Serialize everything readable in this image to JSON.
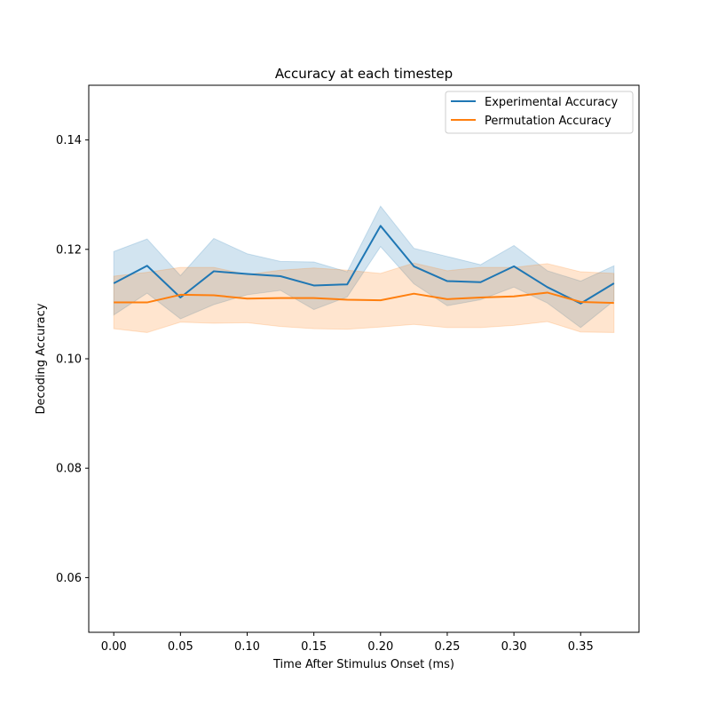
{
  "chart_data": {
    "type": "line",
    "title": "Accuracy at each timestep",
    "xlabel": "Time After Stimulus Onset (ms)",
    "ylabel": "Decoding Accuracy",
    "xlim": [
      -0.01875,
      0.39375
    ],
    "ylim": [
      0.05,
      0.15
    ],
    "xticks": [
      0.0,
      0.05,
      0.1,
      0.15,
      0.2,
      0.25,
      0.3,
      0.35
    ],
    "xtick_labels": [
      "0.00",
      "0.05",
      "0.10",
      "0.15",
      "0.20",
      "0.25",
      "0.30",
      "0.35"
    ],
    "yticks": [
      0.06,
      0.08,
      0.1,
      0.12,
      0.14
    ],
    "ytick_labels": [
      "0.06",
      "0.08",
      "0.10",
      "0.12",
      "0.14"
    ],
    "grid": false,
    "legend_position": "top-right",
    "x": [
      0.0,
      0.025,
      0.05,
      0.075,
      0.1,
      0.125,
      0.15,
      0.175,
      0.2,
      0.225,
      0.25,
      0.275,
      0.3,
      0.325,
      0.35,
      0.375
    ],
    "series": [
      {
        "name": "Experimental Accuracy",
        "color": "#1f77b4",
        "values": [
          0.1138,
          0.117,
          0.1112,
          0.116,
          0.1155,
          0.1151,
          0.1134,
          0.1136,
          0.1243,
          0.1169,
          0.1142,
          0.114,
          0.1169,
          0.1131,
          0.1101,
          0.1138
        ],
        "lower": [
          0.108,
          0.112,
          0.1073,
          0.1099,
          0.1117,
          0.1125,
          0.109,
          0.1113,
          0.1205,
          0.1137,
          0.1097,
          0.1108,
          0.1131,
          0.1102,
          0.1057,
          0.1106
        ],
        "upper": [
          0.1196,
          0.1219,
          0.1152,
          0.122,
          0.1192,
          0.1178,
          0.1177,
          0.1159,
          0.1279,
          0.1202,
          0.1187,
          0.1172,
          0.1207,
          0.1161,
          0.1142,
          0.117
        ]
      },
      {
        "name": "Permutation Accuracy",
        "color": "#ff7f0e",
        "values": [
          0.1103,
          0.1103,
          0.1117,
          0.1116,
          0.111,
          0.1111,
          0.1111,
          0.1108,
          0.1107,
          0.1119,
          0.1109,
          0.1112,
          0.1114,
          0.1121,
          0.1104,
          0.1102
        ],
        "lower": [
          0.1055,
          0.1048,
          0.1067,
          0.1065,
          0.1066,
          0.1059,
          0.1055,
          0.1054,
          0.1058,
          0.1063,
          0.1057,
          0.1057,
          0.1061,
          0.1068,
          0.1049,
          0.1048
        ],
        "upper": [
          0.1151,
          0.1158,
          0.1167,
          0.1167,
          0.1154,
          0.1162,
          0.1166,
          0.1162,
          0.1156,
          0.1175,
          0.1161,
          0.1167,
          0.1167,
          0.1174,
          0.1159,
          0.1156
        ]
      }
    ]
  }
}
